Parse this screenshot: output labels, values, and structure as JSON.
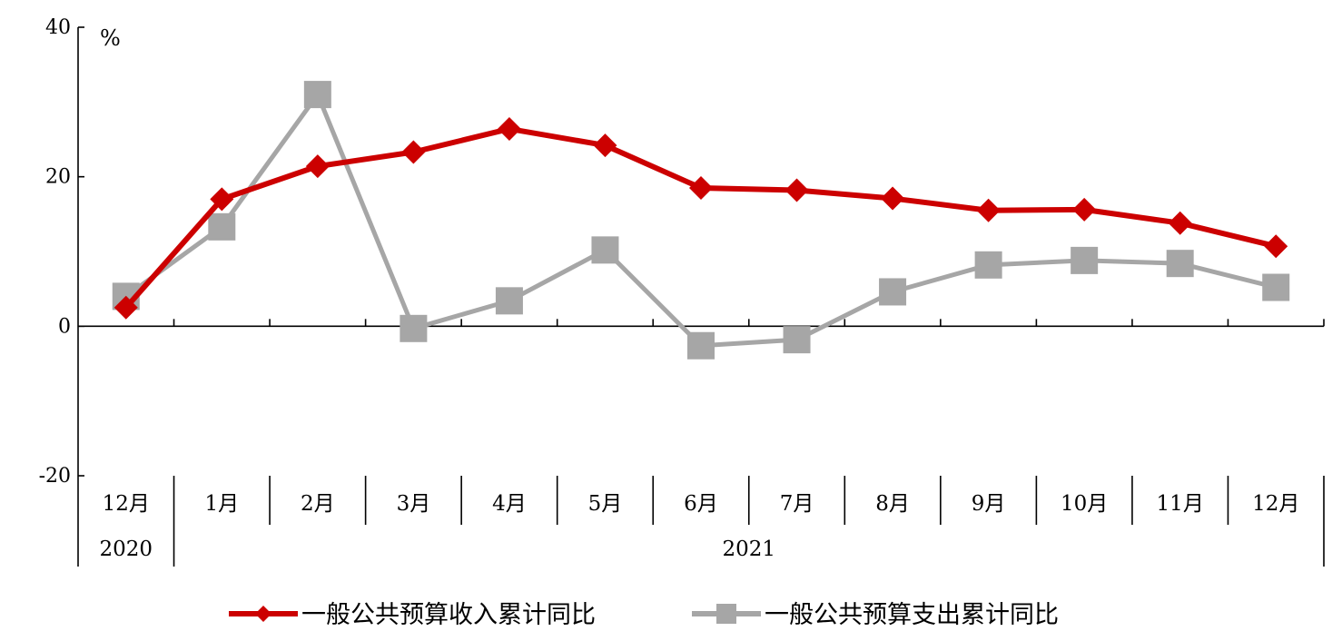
{
  "chart_data": {
    "type": "line",
    "title": "",
    "xlabel": "",
    "ylabel": "",
    "y_unit": "%",
    "ylim": [
      -20,
      40
    ],
    "y_ticks": [
      40,
      20,
      0,
      -20
    ],
    "grid": false,
    "legend_position": "bottom",
    "categories": [
      "12月",
      "1月",
      "2月",
      "3月",
      "4月",
      "5月",
      "6月",
      "7月",
      "8月",
      "9月",
      "10月",
      "11月",
      "12月"
    ],
    "year_groups": [
      {
        "label": "2020",
        "start": 0,
        "end": 0
      },
      {
        "label": "2021",
        "start": 1,
        "end": 12
      }
    ],
    "series": [
      {
        "name": "一般公共预算收入累计同比",
        "color": "#cc0000",
        "marker": "diamond",
        "values": [
          2.5,
          17.0,
          21.4,
          23.3,
          26.4,
          24.2,
          18.5,
          18.2,
          17.1,
          15.5,
          15.6,
          13.8,
          10.7
        ]
      },
      {
        "name": "一般公共预算支出累计同比",
        "color": "#a6a6a6",
        "marker": "square",
        "values": [
          4.0,
          13.3,
          31.0,
          -0.3,
          3.4,
          10.2,
          -2.6,
          -1.8,
          4.6,
          8.2,
          8.8,
          8.4,
          5.2
        ]
      }
    ]
  }
}
